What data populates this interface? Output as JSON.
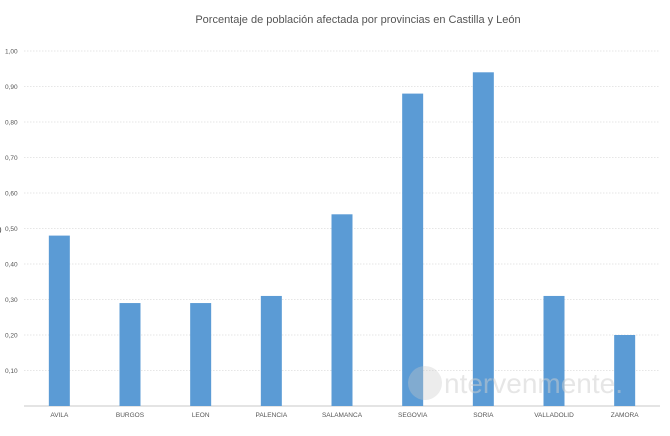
{
  "chart_data": {
    "type": "bar",
    "title": "Porcentaje de población afectada por provincias en Castilla y León",
    "categories": [
      "AVILA",
      "BURGOS",
      "LEON",
      "PALENCIA",
      "SALAMANCA",
      "SEGOVIA",
      "SORIA",
      "VALLADOLID",
      "ZAMORA"
    ],
    "values": [
      0.48,
      0.29,
      0.29,
      0.31,
      0.54,
      0.88,
      0.94,
      0.31,
      0.2
    ],
    "y_ticks": [
      "0,10",
      "0,20",
      "0,30",
      "0,40",
      "0,50",
      "0,60",
      "0,70",
      "0,80",
      "0,90",
      "1,00"
    ],
    "ylim": [
      0,
      1.0
    ],
    "grid": true,
    "legend": "none",
    "xlabel": "",
    "ylabel": "",
    "bar_color": "#5b9bd5"
  },
  "watermark": {
    "text": "ntervenmente."
  },
  "left_clip_glyph": "0"
}
